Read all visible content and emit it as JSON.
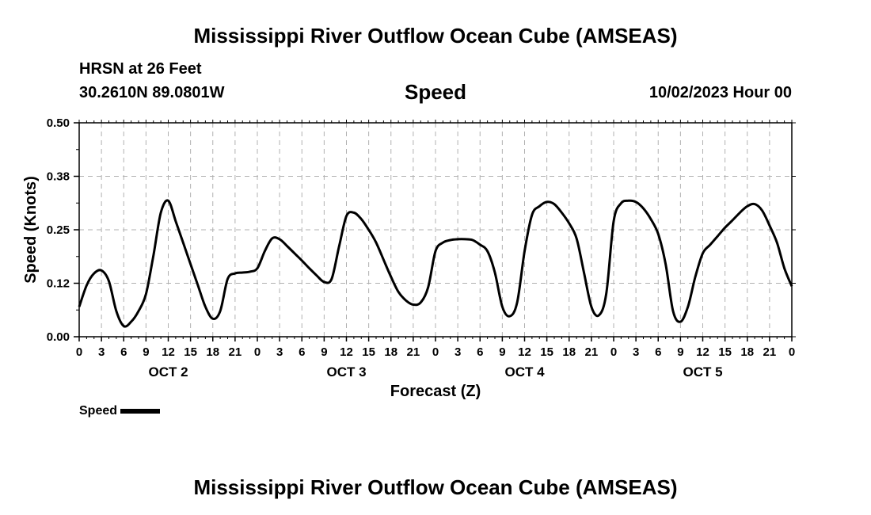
{
  "header": {
    "title": "Mississippi River Outflow Ocean Cube (AMSEAS)",
    "station": "HRSN at 26 Feet",
    "coordinates": "30.2610N  89.0801W",
    "subtitle": "Speed",
    "datetime": "10/02/2023 Hour 00"
  },
  "footer": {
    "title": "Mississippi River Outflow Ocean Cube (AMSEAS)"
  },
  "legend": {
    "label": "Speed"
  },
  "chart_data": {
    "type": "line",
    "title": "Speed",
    "xlabel": "Forecast (Z)",
    "ylabel": "Speed (Knots)",
    "xlim": [
      0,
      96
    ],
    "ylim": [
      0,
      0.5
    ],
    "yticks": [
      "0.00",
      "0.12",
      "0.25",
      "0.38",
      "0.50"
    ],
    "ytick_values": [
      0,
      0.125,
      0.25,
      0.375,
      0.5
    ],
    "xtick_labels": [
      "0",
      "3",
      "6",
      "9",
      "12",
      "15",
      "18",
      "21",
      "0",
      "3",
      "6",
      "9",
      "12",
      "15",
      "18",
      "21",
      "0",
      "3",
      "6",
      "9",
      "12",
      "15",
      "18",
      "21",
      "0",
      "3",
      "6",
      "9",
      "12",
      "15",
      "18",
      "21",
      "0"
    ],
    "day_labels": [
      {
        "label": "OCT 2",
        "hour": 12
      },
      {
        "label": "OCT 3",
        "hour": 36
      },
      {
        "label": "OCT 4",
        "hour": 60
      },
      {
        "label": "OCT 5",
        "hour": 84
      }
    ],
    "grid": true,
    "series": [
      {
        "name": "Speed",
        "color": "#000000",
        "x": [
          0,
          1,
          2,
          3,
          4,
          5,
          6,
          7,
          8,
          9,
          10,
          11,
          12,
          13,
          14,
          15,
          16,
          17,
          18,
          19,
          20,
          21,
          22,
          23,
          24,
          25,
          26,
          27,
          28,
          29,
          30,
          31,
          32,
          33,
          34,
          35,
          36,
          37,
          38,
          39,
          40,
          41,
          42,
          43,
          44,
          45,
          46,
          47,
          48,
          49,
          50,
          51,
          52,
          53,
          54,
          55,
          56,
          57,
          58,
          59,
          60,
          61,
          62,
          63,
          64,
          65,
          66,
          67,
          68,
          69,
          70,
          71,
          72,
          73,
          74,
          75,
          76,
          77,
          78,
          79,
          80,
          81,
          82,
          83,
          84,
          85,
          86,
          87,
          88,
          89,
          90,
          91,
          92,
          93,
          94,
          95,
          96
        ],
        "values": [
          0.07,
          0.12,
          0.148,
          0.155,
          0.13,
          0.06,
          0.025,
          0.035,
          0.06,
          0.1,
          0.19,
          0.29,
          0.318,
          0.27,
          0.22,
          0.17,
          0.12,
          0.07,
          0.042,
          0.06,
          0.135,
          0.148,
          0.15,
          0.152,
          0.16,
          0.2,
          0.23,
          0.228,
          0.212,
          0.195,
          0.178,
          0.16,
          0.143,
          0.128,
          0.135,
          0.21,
          0.282,
          0.29,
          0.275,
          0.25,
          0.22,
          0.18,
          0.14,
          0.105,
          0.085,
          0.075,
          0.08,
          0.115,
          0.2,
          0.22,
          0.226,
          0.228,
          0.228,
          0.226,
          0.215,
          0.2,
          0.15,
          0.07,
          0.048,
          0.08,
          0.2,
          0.285,
          0.305,
          0.315,
          0.31,
          0.29,
          0.265,
          0.23,
          0.15,
          0.07,
          0.05,
          0.1,
          0.27,
          0.312,
          0.318,
          0.315,
          0.3,
          0.275,
          0.24,
          0.17,
          0.06,
          0.035,
          0.07,
          0.14,
          0.195,
          0.215,
          0.235,
          0.255,
          0.272,
          0.29,
          0.305,
          0.31,
          0.295,
          0.26,
          0.22,
          0.16,
          0.118
        ]
      }
    ]
  }
}
